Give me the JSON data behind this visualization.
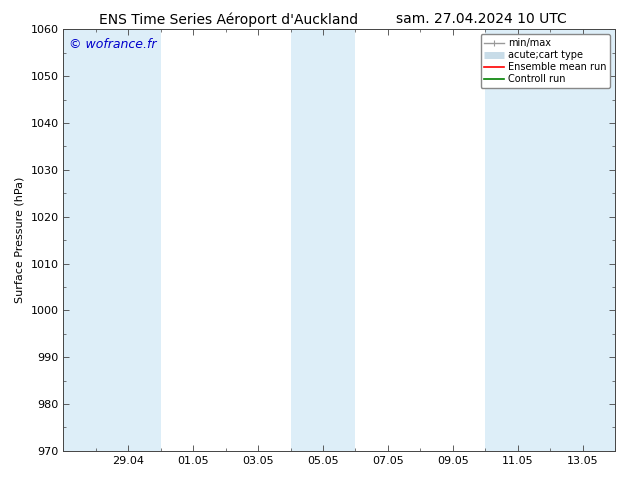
{
  "title_left": "ENS Time Series Aéroport d'Auckland",
  "title_right": "sam. 27.04.2024 10 UTC",
  "ylabel": "Surface Pressure (hPa)",
  "ylim": [
    970,
    1060
  ],
  "yticks": [
    970,
    980,
    990,
    1000,
    1010,
    1020,
    1030,
    1040,
    1050,
    1060
  ],
  "xlim_days": [
    0,
    17
  ],
  "xtick_labels": [
    "29.04",
    "01.05",
    "03.05",
    "05.05",
    "07.05",
    "09.05",
    "11.05",
    "13.05"
  ],
  "xtick_days": [
    2,
    4,
    6,
    8,
    10,
    12,
    14,
    16
  ],
  "watermark": "© wofrance.fr",
  "watermark_color": "#0000cc",
  "bg_color": "#ffffff",
  "shaded_bands": [
    {
      "x_start": 0,
      "x_end": 3,
      "color": "#ddeef8"
    },
    {
      "x_start": 7,
      "x_end": 9,
      "color": "#ddeef8"
    },
    {
      "x_start": 13,
      "x_end": 17,
      "color": "#ddeef8"
    }
  ],
  "legend_entries": [
    {
      "label": "min/max",
      "color": "#999999",
      "lw": 1.0
    },
    {
      "label": "acute;cart type",
      "color": "#c8dce8",
      "lw": 5.0
    },
    {
      "label": "Ensemble mean run",
      "color": "#ff0000",
      "lw": 1.2
    },
    {
      "label": "Controll run",
      "color": "#008000",
      "lw": 1.2
    }
  ],
  "title_fontsize": 10,
  "axis_fontsize": 8,
  "watermark_fontsize": 9,
  "spine_color": "#444444",
  "tick_color": "#444444"
}
